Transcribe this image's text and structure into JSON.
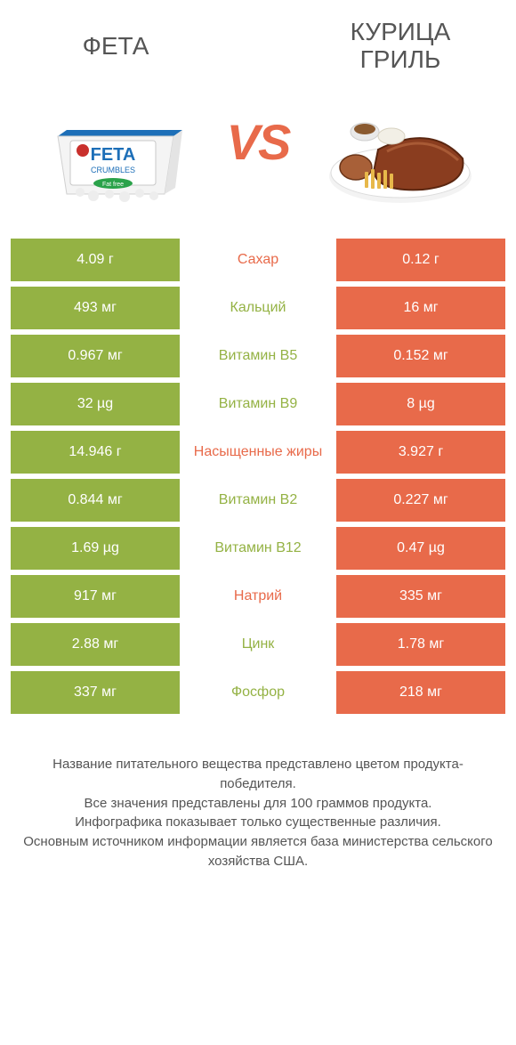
{
  "colors": {
    "left": "#94b244",
    "right": "#e86a4a",
    "text": "#555555",
    "bg": "#ffffff"
  },
  "header": {
    "left_title": "ФЕТА",
    "right_title": "КУРИЦА ГРИЛЬ",
    "vs_label": "VS"
  },
  "rows": [
    {
      "left": "4.09 г",
      "label": "Сахар",
      "winner": "right",
      "right": "0.12 г"
    },
    {
      "left": "493 мг",
      "label": "Кальций",
      "winner": "left",
      "right": "16 мг"
    },
    {
      "left": "0.967 мг",
      "label": "Витамин B5",
      "winner": "left",
      "right": "0.152 мг"
    },
    {
      "left": "32 µg",
      "label": "Витамин B9",
      "winner": "left",
      "right": "8 µg"
    },
    {
      "left": "14.946 г",
      "label": "Насыщенные жиры",
      "winner": "right",
      "right": "3.927 г"
    },
    {
      "left": "0.844 мг",
      "label": "Витамин B2",
      "winner": "left",
      "right": "0.227 мг"
    },
    {
      "left": "1.69 µg",
      "label": "Витамин B12",
      "winner": "left",
      "right": "0.47 µg"
    },
    {
      "left": "917 мг",
      "label": "Натрий",
      "winner": "right",
      "right": "335 мг"
    },
    {
      "left": "2.88 мг",
      "label": "Цинк",
      "winner": "left",
      "right": "1.78 мг"
    },
    {
      "left": "337 мг",
      "label": "Фосфор",
      "winner": "left",
      "right": "218 мг"
    }
  ],
  "footnote": {
    "l1": "Название питательного вещества представлено цветом продукта-победителя.",
    "l2": "Все значения представлены для 100 граммов продукта.",
    "l3": "Инфографика показывает только существенные различия.",
    "l4": "Основным источником информации является база министерства сельского хозяйства США."
  }
}
